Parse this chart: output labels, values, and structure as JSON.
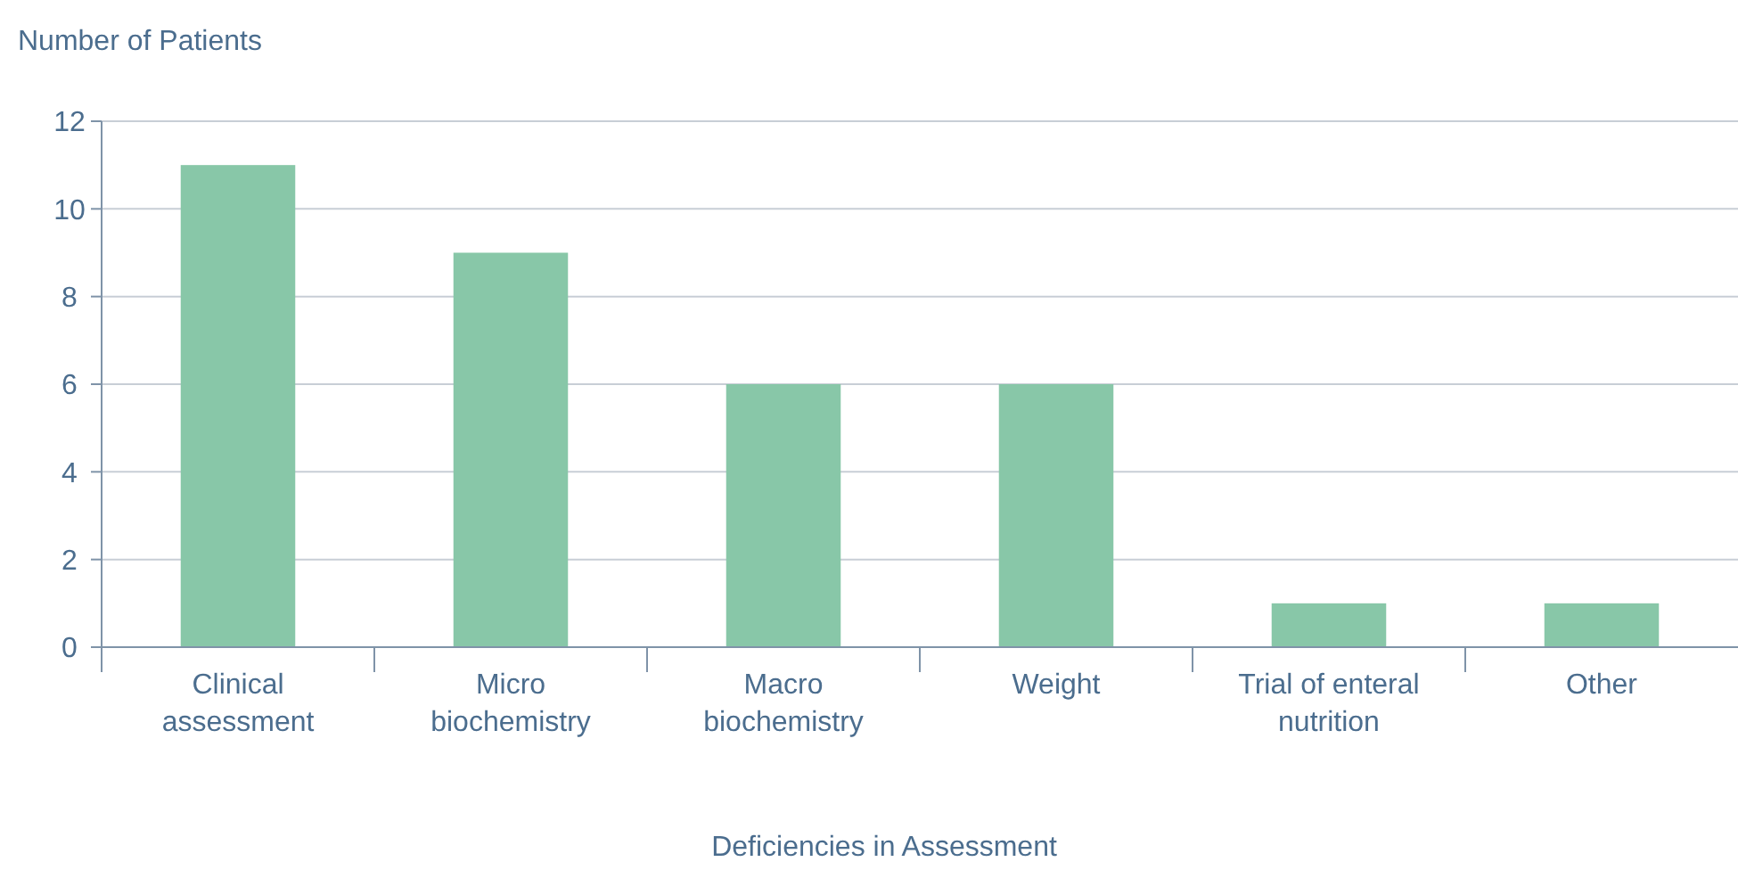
{
  "chart_data": {
    "type": "bar",
    "ylabel": "Number of Patients",
    "xlabel": "Deficiencies in Assessment",
    "categories": [
      "Clinical assessment",
      "Micro biochemistry",
      "Macro biochemistry",
      "Weight",
      "Trial of enteral nutrition",
      "Other"
    ],
    "values": [
      11,
      9,
      6,
      6,
      1,
      1
    ],
    "color": "#88c7a8",
    "ylim": [
      0,
      12
    ],
    "yticks": [
      0,
      2,
      4,
      6,
      8,
      10,
      12
    ],
    "grid": "y"
  }
}
